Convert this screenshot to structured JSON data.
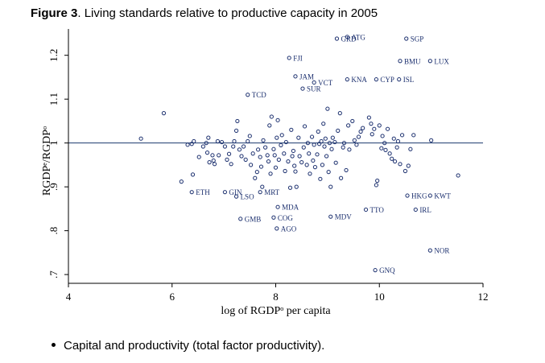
{
  "figure": {
    "label": "Figure 3",
    "rest": ". Living standards relative to productive capacity in 2005"
  },
  "bullet": "Capital and productivity (total factor productivity).",
  "colors": {
    "marker": "#1b2f6e",
    "refline": "#1b3a6e",
    "axis": "#000000"
  },
  "chart_data": {
    "type": "scatter",
    "xlabel": "log of RGDPᵒ per capita",
    "ylabel": "RGDPᵉ/RGDPᵒ",
    "xlim": [
      4,
      12
    ],
    "ylim": [
      0.68,
      1.26
    ],
    "xticks": [
      4,
      6,
      8,
      10,
      12
    ],
    "yticks": [
      0.7,
      0.8,
      0.9,
      1.0,
      1.1,
      1.2
    ],
    "ytick_labels": [
      ".7",
      ".8",
      ".9",
      "1",
      "1.1",
      "1.2"
    ],
    "reference_line_y": 1.0,
    "grid": false,
    "labeled_points": [
      {
        "label": "GRD",
        "x": 9.18,
        "y": 1.238
      },
      {
        "label": "ATG",
        "x": 9.38,
        "y": 1.242
      },
      {
        "label": "SGP",
        "x": 10.52,
        "y": 1.238
      },
      {
        "label": "FJI",
        "x": 8.26,
        "y": 1.194
      },
      {
        "label": "BMU",
        "x": 10.4,
        "y": 1.187
      },
      {
        "label": "LUX",
        "x": 10.98,
        "y": 1.187
      },
      {
        "label": "JAM",
        "x": 8.38,
        "y": 1.152
      },
      {
        "label": "VCT",
        "x": 8.74,
        "y": 1.138
      },
      {
        "label": "KNA",
        "x": 9.38,
        "y": 1.145
      },
      {
        "label": "CYP",
        "x": 9.94,
        "y": 1.145
      },
      {
        "label": "ISL",
        "x": 10.38,
        "y": 1.145
      },
      {
        "label": "SUR",
        "x": 8.52,
        "y": 1.124
      },
      {
        "label": "TCD",
        "x": 7.46,
        "y": 1.11
      },
      {
        "label": "ETH",
        "x": 6.38,
        "y": 0.888
      },
      {
        "label": "GIN",
        "x": 7.02,
        "y": 0.888
      },
      {
        "label": "LSO",
        "x": 7.24,
        "y": 0.878
      },
      {
        "label": "MRT",
        "x": 7.7,
        "y": 0.888
      },
      {
        "label": "HKG",
        "x": 10.54,
        "y": 0.88
      },
      {
        "label": "KWT",
        "x": 10.98,
        "y": 0.88
      },
      {
        "label": "MDA",
        "x": 8.04,
        "y": 0.854
      },
      {
        "label": "TTO",
        "x": 9.74,
        "y": 0.848
      },
      {
        "label": "IRL",
        "x": 10.7,
        "y": 0.848
      },
      {
        "label": "GMB",
        "x": 7.32,
        "y": 0.827
      },
      {
        "label": "COG",
        "x": 7.96,
        "y": 0.83
      },
      {
        "label": "MDV",
        "x": 9.06,
        "y": 0.832
      },
      {
        "label": "AGO",
        "x": 8.02,
        "y": 0.805
      },
      {
        "label": "NOR",
        "x": 10.98,
        "y": 0.755
      },
      {
        "label": "GNQ",
        "x": 9.92,
        "y": 0.71
      }
    ],
    "points": [
      [
        5.4,
        1.01
      ],
      [
        5.84,
        1.068
      ],
      [
        6.18,
        0.912
      ],
      [
        6.3,
        0.996
      ],
      [
        6.38,
        0.998
      ],
      [
        6.42,
        1.004
      ],
      [
        6.4,
        0.928
      ],
      [
        6.52,
        0.968
      ],
      [
        6.6,
        0.992
      ],
      [
        6.66,
        1.0
      ],
      [
        6.68,
        0.978
      ],
      [
        6.7,
        1.012
      ],
      [
        6.72,
        0.956
      ],
      [
        6.78,
        0.972
      ],
      [
        6.8,
        0.96
      ],
      [
        6.82,
        0.952
      ],
      [
        6.88,
        1.004
      ],
      [
        6.9,
        0.972
      ],
      [
        6.96,
        1.002
      ],
      [
        7.02,
        0.992
      ],
      [
        7.06,
        0.962
      ],
      [
        7.1,
        0.975
      ],
      [
        7.14,
        0.952
      ],
      [
        7.18,
        0.992
      ],
      [
        7.2,
        1.004
      ],
      [
        7.24,
        1.028
      ],
      [
        7.26,
        1.05
      ],
      [
        7.3,
        0.985
      ],
      [
        7.34,
        0.97
      ],
      [
        7.38,
        0.992
      ],
      [
        7.42,
        0.962
      ],
      [
        7.46,
        1.004
      ],
      [
        7.5,
        1.016
      ],
      [
        7.52,
        0.95
      ],
      [
        7.56,
        0.976
      ],
      [
        7.6,
        0.92
      ],
      [
        7.64,
        0.934
      ],
      [
        7.66,
        0.985
      ],
      [
        7.7,
        0.968
      ],
      [
        7.72,
        0.946
      ],
      [
        7.74,
        0.9
      ],
      [
        7.76,
        1.006
      ],
      [
        7.8,
        0.99
      ],
      [
        7.84,
        0.972
      ],
      [
        7.86,
        0.958
      ],
      [
        7.88,
        1.04
      ],
      [
        7.9,
        0.93
      ],
      [
        7.92,
        1.06
      ],
      [
        7.96,
        0.986
      ],
      [
        7.98,
        0.972
      ],
      [
        8.0,
        0.944
      ],
      [
        8.02,
        1.012
      ],
      [
        8.04,
        1.052
      ],
      [
        8.06,
        0.962
      ],
      [
        8.1,
        0.995
      ],
      [
        8.12,
        1.018
      ],
      [
        8.16,
        0.976
      ],
      [
        8.18,
        0.936
      ],
      [
        8.2,
        1.002
      ],
      [
        8.24,
        0.958
      ],
      [
        8.28,
        0.898
      ],
      [
        8.3,
        1.03
      ],
      [
        8.32,
        0.97
      ],
      [
        8.34,
        0.982
      ],
      [
        8.36,
        0.948
      ],
      [
        8.38,
        0.935
      ],
      [
        8.4,
        0.9
      ],
      [
        8.44,
        1.012
      ],
      [
        8.46,
        0.97
      ],
      [
        8.5,
        0.956
      ],
      [
        8.54,
        0.99
      ],
      [
        8.56,
        1.038
      ],
      [
        8.6,
        0.95
      ],
      [
        8.62,
        1.0
      ],
      [
        8.64,
        0.976
      ],
      [
        8.66,
        0.93
      ],
      [
        8.7,
        1.014
      ],
      [
        8.72,
        0.96
      ],
      [
        8.74,
        0.996
      ],
      [
        8.76,
        0.945
      ],
      [
        8.8,
        0.974
      ],
      [
        8.82,
        1.026
      ],
      [
        8.84,
        0.998
      ],
      [
        8.86,
        0.918
      ],
      [
        8.88,
        1.004
      ],
      [
        8.9,
        0.95
      ],
      [
        8.92,
        1.044
      ],
      [
        8.94,
        0.992
      ],
      [
        8.96,
        1.01
      ],
      [
        8.98,
        0.97
      ],
      [
        9.0,
        1.078
      ],
      [
        9.02,
        0.934
      ],
      [
        9.04,
        1.0
      ],
      [
        9.06,
        0.9
      ],
      [
        9.08,
        0.986
      ],
      [
        9.1,
        1.012
      ],
      [
        9.14,
        1.002
      ],
      [
        9.16,
        0.955
      ],
      [
        9.2,
        1.028
      ],
      [
        9.24,
        1.068
      ],
      [
        9.26,
        0.92
      ],
      [
        9.3,
        0.99
      ],
      [
        9.32,
        1.0
      ],
      [
        9.36,
        0.938
      ],
      [
        9.4,
        1.04
      ],
      [
        9.42,
        0.985
      ],
      [
        9.48,
        1.05
      ],
      [
        9.52,
        1.006
      ],
      [
        9.56,
        0.996
      ],
      [
        9.6,
        1.014
      ],
      [
        9.64,
        1.026
      ],
      [
        9.68,
        1.034
      ],
      [
        9.8,
        1.058
      ],
      [
        9.84,
        1.044
      ],
      [
        9.86,
        1.02
      ],
      [
        9.9,
        1.032
      ],
      [
        9.94,
        0.904
      ],
      [
        9.96,
        0.914
      ],
      [
        10.0,
        1.04
      ],
      [
        10.04,
        0.988
      ],
      [
        10.06,
        1.016
      ],
      [
        10.1,
        1.0
      ],
      [
        10.12,
        0.984
      ],
      [
        10.16,
        1.032
      ],
      [
        10.2,
        0.976
      ],
      [
        10.24,
        0.964
      ],
      [
        10.28,
        1.01
      ],
      [
        10.3,
        0.958
      ],
      [
        10.34,
        0.99
      ],
      [
        10.36,
        1.004
      ],
      [
        10.4,
        0.952
      ],
      [
        10.44,
        1.018
      ],
      [
        10.5,
        0.936
      ],
      [
        10.56,
        0.948
      ],
      [
        10.6,
        0.986
      ],
      [
        10.66,
        1.018
      ],
      [
        11.0,
        1.006
      ],
      [
        11.52,
        0.926
      ]
    ]
  }
}
